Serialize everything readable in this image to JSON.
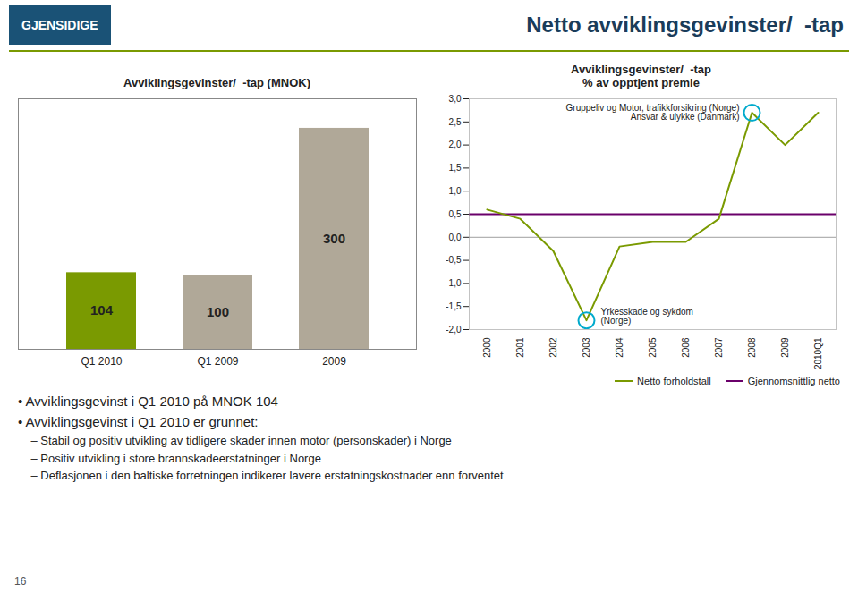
{
  "title": "Netto avviklingsgevinster/  -tap",
  "annotations": [
    "GJENSIDIGE",
    "• Avviklingsgevinst i Q1 2010 på MNOK 104",
    "• Avviklingsgevinst i Q1 2010 er grunnet:",
    "    – Stabil og positiv utvikling av tidligere skader innen motor (personskader) i Norge",
    "    – Positiv utvikling i store brannskadeerstatninger i Norge",
    "    – Deflasjonen i den baltiske forretningen indikerer lavere erstatningskostnader enn forventet",
    "16"
  ],
  "chart_data": [
    {
      "type": "bar",
      "title": "Avviklingsgevinster/  -tap (MNOK)",
      "categories": [
        "Q1 2010",
        "Q1 2009",
        "2009"
      ],
      "values": [
        104,
        100,
        300
      ],
      "colors": [
        "#7a9a01",
        "#b0a898",
        "#b0a898"
      ],
      "ylim": [
        0,
        340
      ],
      "data_labels": true,
      "tick_labels": "x",
      "grid": false
    },
    {
      "type": "line",
      "title": "Avviklingsgevinster/  -tap\n% av opptjent premie",
      "categories": [
        "2000",
        "2001",
        "2002",
        "2003",
        "2004",
        "2005",
        "2006",
        "2007",
        "2008",
        "2009",
        "2010Q1"
      ],
      "series": [
        {
          "name": "Netto forholdstall",
          "color": "#7a9a01",
          "values": [
            0.6,
            0.4,
            -0.3,
            -1.8,
            -0.2,
            -0.1,
            -0.1,
            0.4,
            2.7,
            2.0,
            2.7
          ]
        }
      ],
      "average": {
        "name": "Gjennomsnittlig netto",
        "color": "#6a006a",
        "value": 0.5
      },
      "ylim": [
        -2.0,
        3.0
      ],
      "yticks": [
        {
          "value": -2.0,
          "label": "-2,0"
        },
        {
          "value": -1.5,
          "label": "-1,5"
        },
        {
          "value": -1.0,
          "label": "-1,0"
        },
        {
          "value": -0.5,
          "label": "-0,5"
        },
        {
          "value": 0.0,
          "label": "0,0"
        },
        {
          "value": 0.5,
          "label": "0,5"
        },
        {
          "value": 1.0,
          "label": "1,0"
        },
        {
          "value": 1.5,
          "label": "1,5"
        },
        {
          "value": 2.0,
          "label": "2,0"
        },
        {
          "value": 2.5,
          "label": "2,5"
        },
        {
          "value": 3.0,
          "label": "3,0"
        }
      ],
      "legend": "lower right",
      "grid": false,
      "annotations": [
        {
          "x": "2003",
          "y": -1.8,
          "text": "Yrkesskade og sykdom\n(Norge)"
        },
        {
          "x": "2008",
          "y": 2.7,
          "text": "Gruppeliv og Motor, trafikkforsikring (Norge)\nAnsvar & ulykke (Danmark)"
        }
      ]
    }
  ]
}
